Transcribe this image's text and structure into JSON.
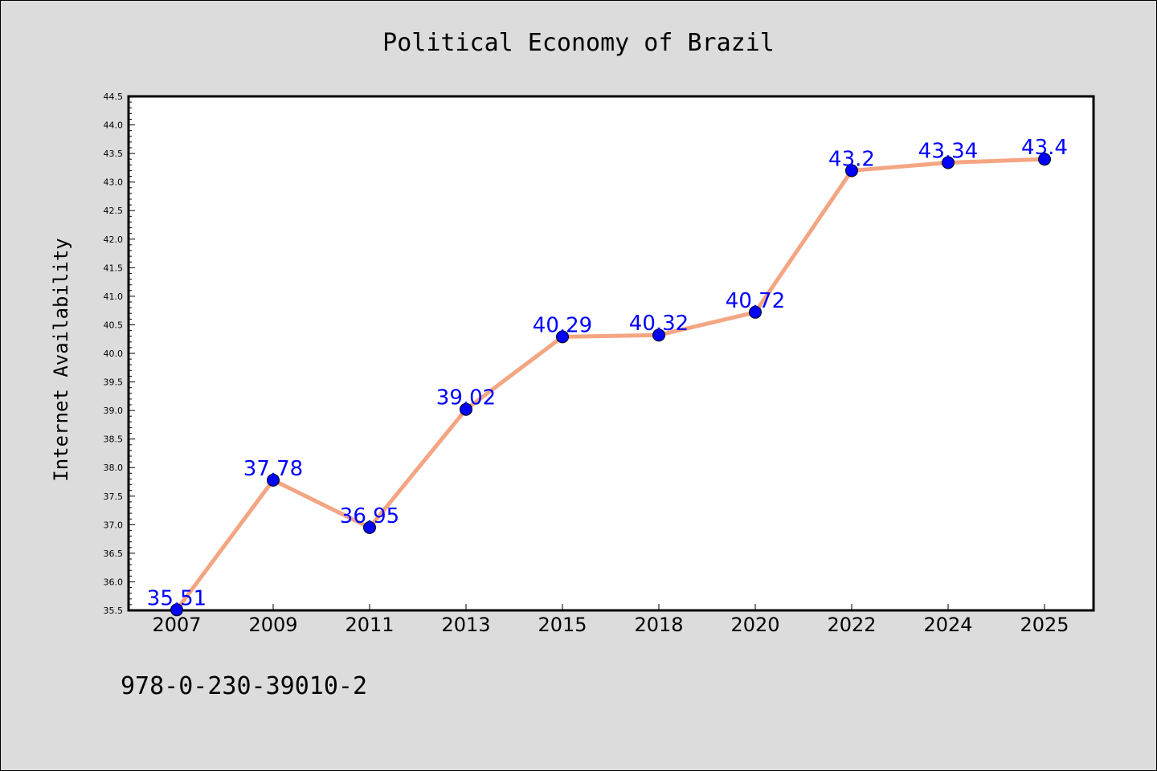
{
  "colors": {
    "line": "#f4a582",
    "marker": "#0000ff",
    "data_label": "#0000ff",
    "plot_background": "#ffffff",
    "figure_background": "#dcdcdc"
  },
  "chart_data": {
    "type": "line",
    "title": "Political Economy of Brazil",
    "xlabel": "",
    "ylabel": "Internet Availability",
    "categories": [
      "2007",
      "2009",
      "2011",
      "2013",
      "2015",
      "2018",
      "2020",
      "2022",
      "2024",
      "2025"
    ],
    "values": [
      35.51,
      37.78,
      36.95,
      39.02,
      40.29,
      40.32,
      40.72,
      43.2,
      43.34,
      43.4
    ],
    "data_labels": [
      "35.51",
      "37.78",
      "36.95",
      "39.02",
      "40.29",
      "40.32",
      "40.72",
      "43.2",
      "43.34",
      "43.4"
    ],
    "ylim": [
      35.5,
      44.5
    ],
    "yticks": [
      "35.5",
      "36.0",
      "36.5",
      "37.0",
      "37.5",
      "38.0",
      "38.5",
      "39.0",
      "39.5",
      "40.0",
      "40.5",
      "41.0",
      "41.5",
      "42.0",
      "42.5",
      "43.0",
      "43.5",
      "44.0",
      "44.5"
    ],
    "grid": false,
    "legend": "none"
  },
  "footer": {
    "isbn": "978-0-230-39010-2"
  }
}
